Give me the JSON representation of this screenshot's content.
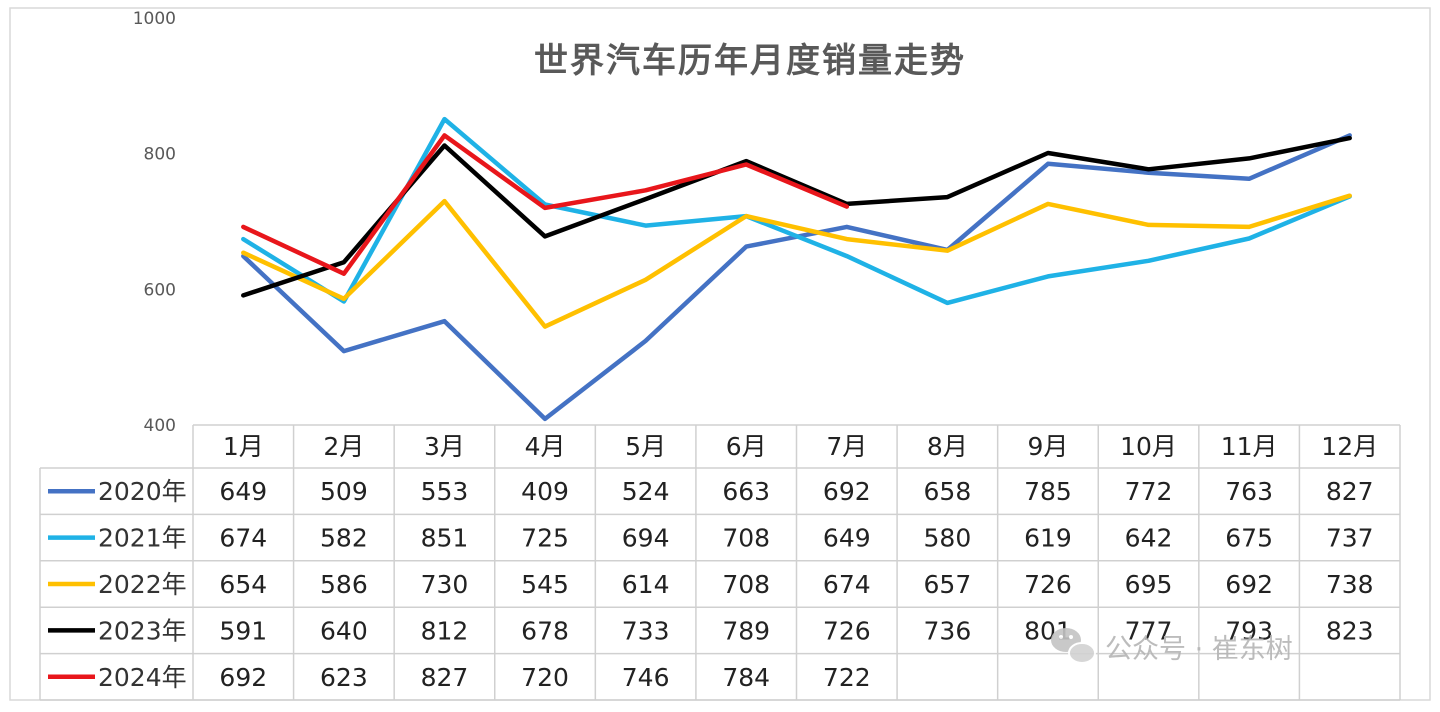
{
  "chart_data": {
    "type": "line",
    "title": "世界汽车历年月度销量走势",
    "categories": [
      "1月",
      "2月",
      "3月",
      "4月",
      "5月",
      "6月",
      "7月",
      "8月",
      "9月",
      "10月",
      "11月",
      "12月"
    ],
    "ylim": [
      400,
      1000
    ],
    "yticks": [
      "1000",
      "800",
      "600",
      "400"
    ],
    "grid": false,
    "legend": "data-table-left",
    "series": [
      {
        "name": "2020年",
        "color": "#4472C4",
        "values": [
          649,
          509,
          553,
          409,
          524,
          663,
          692,
          658,
          785,
          772,
          763,
          827
        ]
      },
      {
        "name": "2021年",
        "color": "#1FB2E6",
        "values": [
          674,
          582,
          851,
          725,
          694,
          708,
          649,
          580,
          619,
          642,
          675,
          737
        ]
      },
      {
        "name": "2022年",
        "color": "#FFC000",
        "values": [
          654,
          586,
          730,
          545,
          614,
          708,
          674,
          657,
          726,
          695,
          692,
          738
        ]
      },
      {
        "name": "2023年",
        "color": "#000000",
        "values": [
          591,
          640,
          812,
          678,
          733,
          789,
          726,
          736,
          801,
          777,
          793,
          823
        ]
      },
      {
        "name": "2024年",
        "color": "#E8161B",
        "values": [
          692,
          623,
          827,
          720,
          746,
          784,
          722,
          null,
          null,
          null,
          null,
          null
        ]
      }
    ]
  },
  "watermark": {
    "text": "公众号 · 崔东树",
    "icon": "wechat-icon"
  }
}
